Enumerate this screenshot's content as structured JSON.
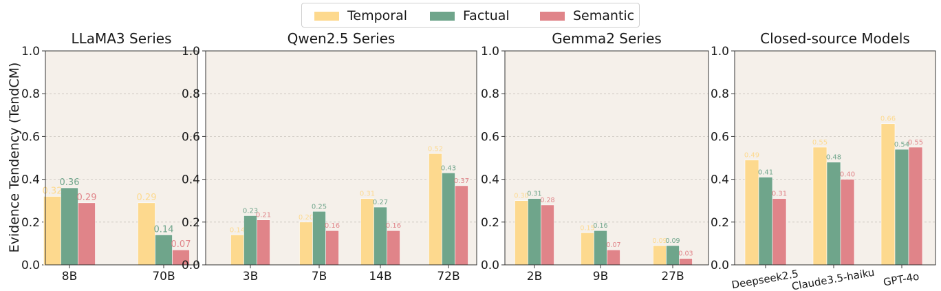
{
  "legend": {
    "items": [
      {
        "label": "Temporal",
        "color": "#fdd98e"
      },
      {
        "label": "Factual",
        "color": "#6fa58b"
      },
      {
        "label": "Semantic",
        "color": "#e08489"
      }
    ]
  },
  "colors": {
    "plot_background": "#f5f0ea",
    "grid": "#c8c2bb",
    "axis": "#333333",
    "temporal_label": "#fdd98e",
    "factual_label": "#6fa58b",
    "semantic_label": "#e08489"
  },
  "chart_data": [
    {
      "type": "bar",
      "title": "LLaMA3 Series",
      "ylabel": "Evidence Tendency (TendCM)",
      "ylim": [
        0,
        1.0
      ],
      "yticks": [
        "0.0",
        "0.2",
        "0.4",
        "0.6",
        "0.8",
        "1.0"
      ],
      "grid": true,
      "categories": [
        "8B",
        "70B"
      ],
      "series": [
        {
          "name": "Temporal",
          "values": [
            0.32,
            0.29
          ],
          "labels": [
            "0.32",
            "0.29"
          ]
        },
        {
          "name": "Factual",
          "values": [
            0.36,
            0.14
          ],
          "labels": [
            "0.36",
            "0.14"
          ]
        },
        {
          "name": "Semantic",
          "values": [
            0.29,
            0.07
          ],
          "labels": [
            "0.29",
            "0.07"
          ]
        }
      ]
    },
    {
      "type": "bar",
      "title": "Qwen2.5 Series",
      "ylim": [
        0,
        1.0
      ],
      "yticks": [
        "0.0",
        "0.2",
        "0.4",
        "0.6",
        "0.8",
        "1.0"
      ],
      "grid": true,
      "categories": [
        "3B",
        "7B",
        "14B",
        "72B"
      ],
      "series": [
        {
          "name": "Temporal",
          "values": [
            0.14,
            0.2,
            0.31,
            0.52
          ],
          "labels": [
            "0.14",
            "0.20",
            "0.31",
            "0.52"
          ]
        },
        {
          "name": "Factual",
          "values": [
            0.23,
            0.25,
            0.27,
            0.43
          ],
          "labels": [
            "0.23",
            "0.25",
            "0.27",
            "0.43"
          ]
        },
        {
          "name": "Semantic",
          "values": [
            0.21,
            0.16,
            0.16,
            0.37
          ],
          "labels": [
            "0.21",
            "0.16",
            "0.16",
            "0.37"
          ]
        }
      ]
    },
    {
      "type": "bar",
      "title": "Gemma2 Series",
      "ylim": [
        0,
        1.0
      ],
      "yticks": [
        "0.0",
        "0.2",
        "0.4",
        "0.6",
        "0.8",
        "1.0"
      ],
      "grid": true,
      "categories": [
        "2B",
        "9B",
        "27B"
      ],
      "series": [
        {
          "name": "Temporal",
          "values": [
            0.3,
            0.15,
            0.09
          ],
          "labels": [
            "0.30",
            "0.15",
            "0.09"
          ]
        },
        {
          "name": "Factual",
          "values": [
            0.31,
            0.16,
            0.09
          ],
          "labels": [
            "0.31",
            "0.16",
            "0.09"
          ]
        },
        {
          "name": "Semantic",
          "values": [
            0.28,
            0.07,
            0.03
          ],
          "labels": [
            "0.28",
            "0.07",
            "0.03"
          ]
        }
      ]
    },
    {
      "type": "bar",
      "title": "Closed-source Models",
      "ylim": [
        0,
        1.0
      ],
      "yticks": [
        "0.0",
        "0.2",
        "0.4",
        "0.6",
        "0.8",
        "1.0"
      ],
      "grid": true,
      "categories": [
        "Deepseek2.5",
        "Claude3.5-haiku",
        "GPT-4o"
      ],
      "xtick_rotation": 10,
      "series": [
        {
          "name": "Temporal",
          "values": [
            0.49,
            0.55,
            0.66
          ],
          "labels": [
            "0.49",
            "0.55",
            "0.66"
          ]
        },
        {
          "name": "Factual",
          "values": [
            0.41,
            0.48,
            0.54
          ],
          "labels": [
            "0.41",
            "0.48",
            "0.54"
          ]
        },
        {
          "name": "Semantic",
          "values": [
            0.31,
            0.4,
            0.55
          ],
          "labels": [
            "0.31",
            "0.40",
            "0.55"
          ]
        }
      ]
    }
  ]
}
